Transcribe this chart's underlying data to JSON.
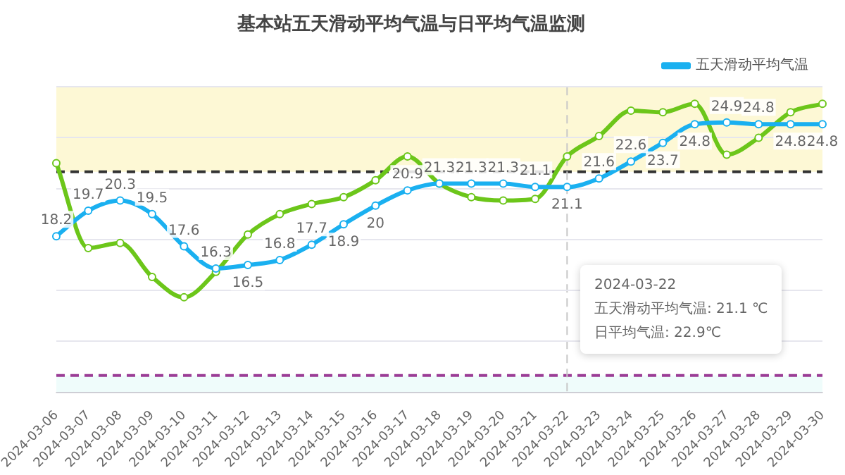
{
  "chart_data": {
    "type": "line",
    "title": "基本站五天滑动平均气温与日平均气温监测",
    "categories": [
      "2024-03-06",
      "2024-03-07",
      "2024-03-08",
      "2024-03-09",
      "2024-03-10",
      "2024-03-11",
      "2024-03-12",
      "2024-03-13",
      "2024-03-14",
      "2024-03-15",
      "2024-03-16",
      "2024-03-17",
      "2024-03-18",
      "2024-03-19",
      "2024-03-20",
      "2024-03-21",
      "2024-03-22",
      "2024-03-23",
      "2024-03-24",
      "2024-03-25",
      "2024-03-26",
      "2024-03-27",
      "2024-03-28",
      "2024-03-29",
      "2024-03-30"
    ],
    "series": [
      {
        "name": "五天滑动平均气温",
        "color": "#1ab0f0",
        "values": [
          18.2,
          19.7,
          20.3,
          19.5,
          17.6,
          16.3,
          16.5,
          16.8,
          17.7,
          18.9,
          20,
          20.9,
          21.3,
          21.3,
          21.3,
          21.1,
          21.1,
          21.6,
          22.6,
          23.7,
          24.8,
          24.9,
          24.8,
          24.8,
          24.8
        ],
        "value_labels": [
          "18.2",
          "19.7",
          "20.3",
          "19.5",
          "17.6",
          "16.3",
          "16.5",
          "16.8",
          "17.7",
          "18.9",
          "20",
          "20.9",
          "21.3",
          "21.3",
          "21.3",
          "21.1",
          "21.1",
          "21.6",
          "22.6",
          "23.7",
          "24.8",
          "24.9",
          "24.8",
          "24.8",
          "24.8"
        ]
      },
      {
        "color": "#6cc61a",
        "values": [
          22.5,
          17.5,
          17.8,
          15.8,
          14.6,
          16.1,
          18.3,
          19.5,
          20.1,
          20.5,
          21.5,
          22.9,
          21.3,
          20.5,
          20.3,
          20.4,
          22.9,
          24.1,
          25.6,
          25.5,
          26.0,
          23.0,
          24.0,
          25.5,
          26.0
        ]
      }
    ],
    "ylim": [
      9,
      27
    ],
    "yticks": [
      {
        "value": 9,
        "label": null
      },
      {
        "value": 12,
        "label": null
      },
      {
        "value": 15,
        "label": null
      },
      {
        "value": 18,
        "label": null
      },
      {
        "value": 21,
        "label": null
      },
      {
        "value": 24,
        "label": null
      },
      {
        "value": 27,
        "label": null
      }
    ],
    "tick_labels": "x",
    "grid": "y",
    "legend": "top right",
    "marker": "circle",
    "line_style": "solid",
    "bands": [
      {
        "axis": "y",
        "from": 22,
        "to": 27,
        "color": "#fdf8d5"
      },
      {
        "axis": "y",
        "from": 9,
        "to": 10,
        "color": "#effcfb"
      }
    ],
    "ref_lines": [
      {
        "axis": "y",
        "value": 22,
        "color": "#333333",
        "line_style": "dashed"
      },
      {
        "axis": "y",
        "value": 10,
        "color": "#9b3d96",
        "line_style": "dashed"
      },
      {
        "axis": "x",
        "value": "2024-03-22",
        "color": "#c8c8c8",
        "line_style": "dashed"
      }
    ],
    "annotations": [
      "2024-03-22",
      "五天滑动平均气温: 21.1 ℃",
      "日平均气温: 22.9℃"
    ]
  }
}
